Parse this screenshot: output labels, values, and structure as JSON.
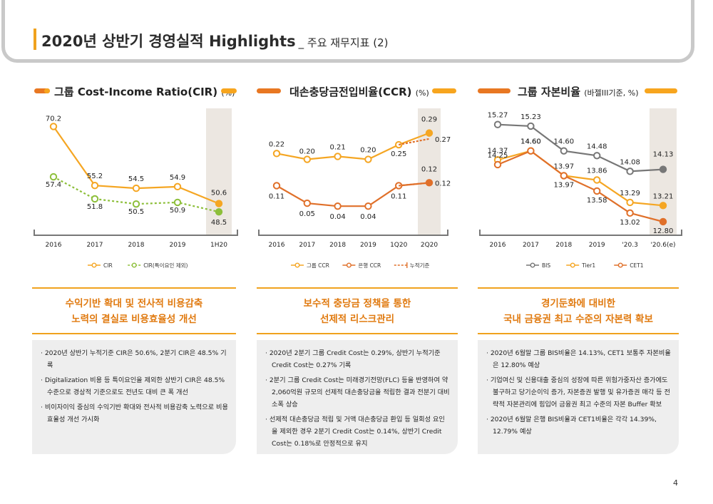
{
  "header": {
    "title": "2020년 상반기 경영실적 Highlights",
    "subtitle": "_ 주요 재무지표 (2)"
  },
  "sections": [
    {
      "title": "그룹 Cost-Income Ratio(CIR)",
      "unit": "(%)",
      "summary": [
        "수익기반 확대 및 전사적 비용감축",
        "노력의 결실로 비용효율성 개선"
      ],
      "bullets": [
        "· 2020년 상반기 누적기준 CIR은 50.6%, 2분기 CIR은 48.5% 기록",
        "· Digitalization 비용 등 특이요인을 제외한 상반기 CIR은 48.5% 수준으로 경상적 기준으로도 전년도 대비 큰 폭 개선",
        "· 비이자이익 중심의 수익기반 확대와 전사적 비용감축 노력으로 비용효율성 개선 가시화"
      ]
    },
    {
      "title": "대손충당금전입비율(CCR)",
      "unit": "(%)",
      "summary": [
        "보수적 충당금 정책을 통한",
        "선제적 리스크관리"
      ],
      "bullets": [
        "· 2020년 2분기 그룹 Credit Cost는 0.29%, 상반기 누적기준 Credit Cost는 0.27% 기록",
        "· 2분기 그룹 Credit Cost는 미래경기전망(FLC) 등을 반영하여 약 2,060억원 규모의 선제적 대손충당금을 적립한 결과 전분기 대비 소폭 상승",
        "· 선제적 대손충당금 적립 및 거액 대손충당금 환입 등 일회성 요인을 제외한 경우 2분기 Credit Cost는 0.14%, 상반기 Credit Cost는 0.18%로 안정적으로 유지"
      ]
    },
    {
      "title": "그룹 자본비율",
      "unit": "(바젤III기준, %)",
      "summary": [
        "경기둔화에 대비한",
        "국내 금융권 최고 수준의 자본력 확보"
      ],
      "bullets": [
        "· 2020년 6월말 그룹 BIS비율은 14.13%, CET1 보통주 자본비율은 12.80% 예상",
        "· 기업여신 및 신용대출 중심의 성장에 따른 위험가중자산 증가에도 불구하고 당기순이익 증가, 자본증권 발행 및 유가증권 매각 등 전략적 자본관리에 힘입어 금융권 최고 수준의 자본 Buffer 확보",
        "· 2020년 6월말 은행 BIS비율과 CET1비율은 각각 14.39%, 12.79% 예상"
      ]
    }
  ],
  "chart_data": [
    {
      "type": "line",
      "categories": [
        "2016",
        "2017",
        "2018",
        "2019",
        "1H20"
      ],
      "series": [
        {
          "name": "CIR",
          "values": [
            70.2,
            55.2,
            54.5,
            54.9,
            50.6
          ],
          "labels": [
            "70.2",
            "55.2",
            "54.5",
            "54.9",
            "50.6"
          ],
          "color": "#f5a623"
        },
        {
          "name": "CIR(특이요인 제외)",
          "values": [
            57.4,
            51.8,
            50.5,
            50.9,
            48.5
          ],
          "labels": [
            "57.4",
            "51.8",
            "50.5",
            "50.9",
            "48.5"
          ],
          "color": "#8dbf3a"
        }
      ],
      "ylim": [
        44,
        73
      ]
    },
    {
      "type": "line",
      "categories": [
        "2016",
        "2017",
        "2018",
        "2019",
        "1Q20",
        "2Q20"
      ],
      "series": [
        {
          "name": "그룹 CCR",
          "values": [
            0.22,
            0.2,
            0.21,
            0.2,
            0.25,
            0.29
          ],
          "labels": [
            "0.22",
            "0.20",
            "0.21",
            "0.20",
            "0.25",
            "0.29"
          ],
          "color": "#f5a623"
        },
        {
          "name": "은행 CCR",
          "values": [
            0.11,
            0.05,
            0.04,
            0.04,
            0.11,
            0.12
          ],
          "labels": [
            "0.11",
            "0.05",
            "0.04",
            "0.04",
            "0.11",
            "0.12"
          ],
          "color": "#e0702a"
        },
        {
          "name": "누적기준",
          "values": [
            null,
            null,
            null,
            null,
            0.25,
            0.27
          ],
          "labels": [
            "",
            "",
            "",
            "",
            "",
            "0.27"
          ],
          "color": "#e0702a"
        },
        {
          "name": "누적기준",
          "values": [
            null,
            null,
            null,
            null,
            0.11,
            0.12
          ],
          "labels": [
            "",
            "",
            "",
            "",
            "",
            "0.12"
          ],
          "color": "#e0702a"
        }
      ],
      "ylim": [
        -0.04,
        0.35
      ]
    },
    {
      "type": "line",
      "categories": [
        "2016",
        "2017",
        "2018",
        "2019",
        "'20.3",
        "'20.6(e)"
      ],
      "series": [
        {
          "name": "BIS",
          "values": [
            15.27,
            15.23,
            14.6,
            14.48,
            14.08,
            14.13
          ],
          "labels": [
            "15.27",
            "15.23",
            "14.60",
            "14.48",
            "14.08",
            "14.13"
          ],
          "color": "#777777"
        },
        {
          "name": "Tier1",
          "values": [
            14.37,
            14.6,
            13.97,
            13.86,
            13.29,
            13.21
          ],
          "labels": [
            "14.37",
            "14.60",
            "13.97",
            "13.86",
            "13.29",
            "13.21"
          ],
          "color": "#f5a623"
        },
        {
          "name": "CET1",
          "values": [
            14.25,
            14.6,
            13.97,
            13.58,
            13.02,
            12.8
          ],
          "labels": [
            "14.25",
            "14.60",
            "13.97",
            "13.58",
            "13.02",
            "12.80"
          ],
          "color": "#e0702a"
        }
      ],
      "ylim": [
        12.6,
        15.5
      ]
    }
  ],
  "page_number": "4"
}
